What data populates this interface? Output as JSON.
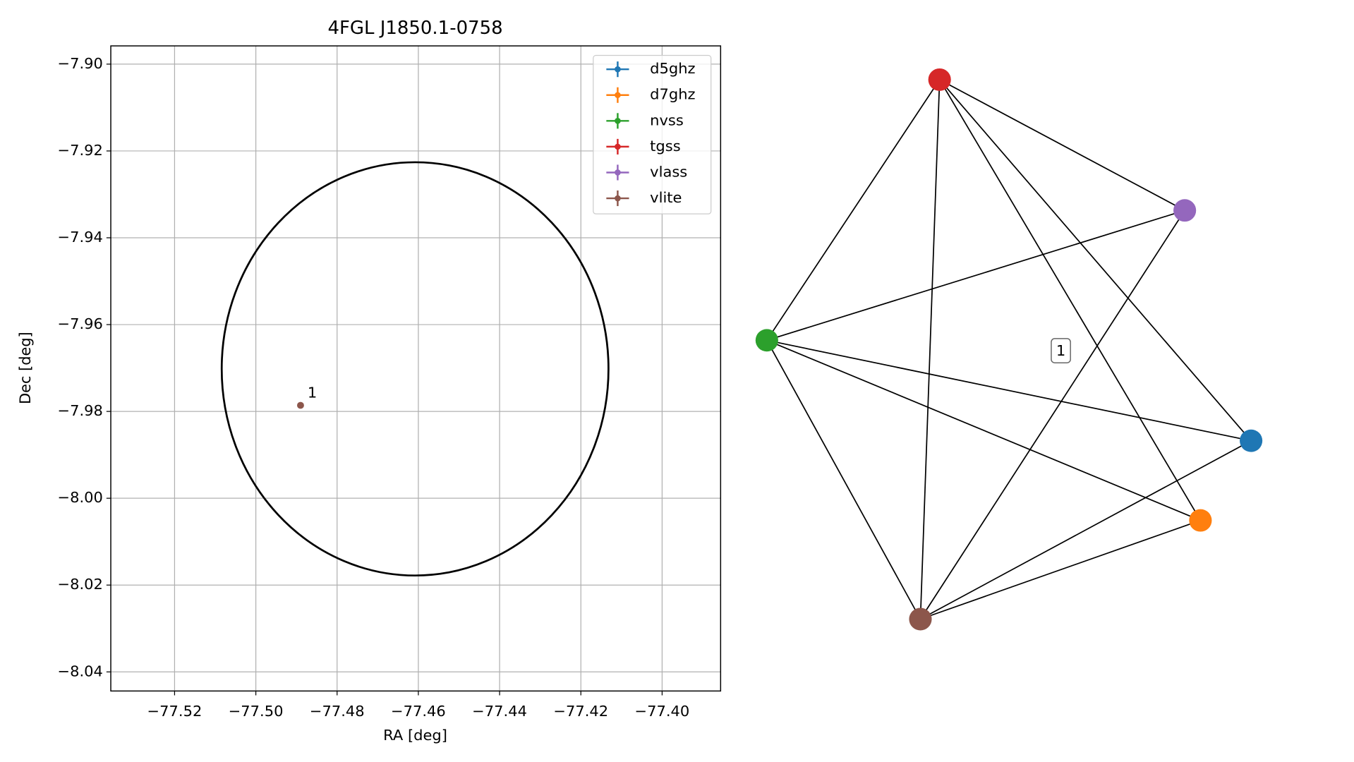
{
  "chart_data": [
    {
      "type": "scatter",
      "title": "4FGL J1850.1-0758",
      "xlabel": "RA [deg]",
      "ylabel": "Dec [deg]",
      "xlim": [
        -77.5357,
        -77.3856
      ],
      "ylim": [
        -8.0444,
        -7.8958
      ],
      "xticks": [
        {
          "value": -77.52,
          "label": "−77.52"
        },
        {
          "value": -77.5,
          "label": "−77.50"
        },
        {
          "value": -77.48,
          "label": "−77.48"
        },
        {
          "value": -77.46,
          "label": "−77.46"
        },
        {
          "value": -77.44,
          "label": "−77.44"
        },
        {
          "value": -77.42,
          "label": "−77.42"
        },
        {
          "value": -77.4,
          "label": "−77.40"
        }
      ],
      "yticks": [
        {
          "value": -7.9,
          "label": "−7.90"
        },
        {
          "value": -7.92,
          "label": "−7.92"
        },
        {
          "value": -7.94,
          "label": "−7.94"
        },
        {
          "value": -7.96,
          "label": "−7.96"
        },
        {
          "value": -7.98,
          "label": "−7.98"
        },
        {
          "value": -8.0,
          "label": "−8.00"
        },
        {
          "value": -8.02,
          "label": "−8.02"
        },
        {
          "value": -8.04,
          "label": "−8.04"
        }
      ],
      "grid": true,
      "legend": "upper right",
      "circle": {
        "center": [
          -77.4608,
          -7.9702
        ],
        "radius": 0.0476,
        "color": "#000000"
      },
      "series": [
        {
          "name": "d5ghz",
          "color": "#1f77b4",
          "x": [],
          "y": []
        },
        {
          "name": "d7ghz",
          "color": "#ff7f0e",
          "x": [],
          "y": []
        },
        {
          "name": "nvss",
          "color": "#2ca02c",
          "x": [],
          "y": []
        },
        {
          "name": "tgss",
          "color": "#d62728",
          "x": [],
          "y": []
        },
        {
          "name": "vlass",
          "color": "#9467bd",
          "x": [],
          "y": []
        },
        {
          "name": "vlite",
          "color": "#8c564b",
          "x": [
            -77.489
          ],
          "y": [
            -7.9786
          ],
          "labels": [
            "1"
          ]
        }
      ]
    },
    {
      "type": "network",
      "edge_label": "1",
      "nodes": [
        {
          "color": "#1f77b4"
        },
        {
          "color": "#ff7f0e"
        },
        {
          "color": "#2ca02c"
        },
        {
          "color": "#d62728"
        },
        {
          "color": "#9467bd"
        },
        {
          "color": "#8c564b"
        }
      ],
      "edges": [
        [
          3,
          2
        ],
        [
          3,
          5
        ],
        [
          3,
          1
        ],
        [
          3,
          0
        ],
        [
          3,
          4
        ],
        [
          2,
          4
        ],
        [
          2,
          0
        ],
        [
          2,
          1
        ],
        [
          2,
          5
        ],
        [
          4,
          5
        ],
        [
          5,
          0
        ],
        [
          5,
          1
        ]
      ]
    }
  ]
}
